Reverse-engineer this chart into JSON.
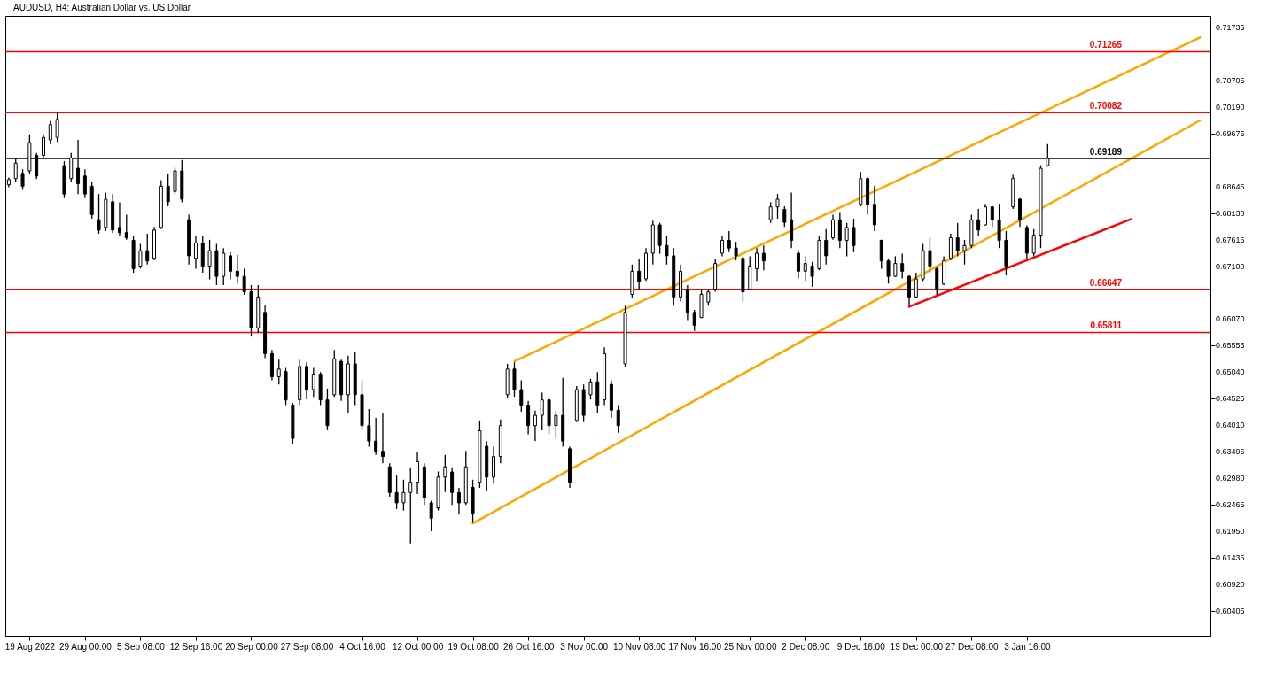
{
  "chart_data": {
    "type": "candlestick",
    "title": "AUDUSD, H4:  Australian Dollar vs. US Dollar",
    "categories": [
      null,
      null,
      null,
      "19 Aug 2022",
      null,
      null,
      null,
      null,
      null,
      null,
      null,
      "29 Aug 00:00",
      null,
      null,
      null,
      null,
      null,
      null,
      null,
      "5 Sep 08:00",
      null,
      null,
      null,
      null,
      null,
      null,
      null,
      "12 Sep 16:00",
      null,
      null,
      null,
      null,
      null,
      null,
      null,
      "20 Sep 00:00",
      null,
      null,
      null,
      null,
      null,
      null,
      null,
      "27 Sep 08:00",
      null,
      null,
      null,
      null,
      null,
      null,
      null,
      "4 Oct 16:00",
      null,
      null,
      null,
      null,
      null,
      null,
      null,
      "12 Oct 00:00",
      null,
      null,
      null,
      null,
      null,
      null,
      null,
      "19 Oct 08:00",
      null,
      null,
      null,
      null,
      null,
      null,
      null,
      "26 Oct 16:00",
      null,
      null,
      null,
      null,
      null,
      null,
      null,
      "3 Nov 00:00",
      null,
      null,
      null,
      null,
      null,
      null,
      null,
      "10 Nov 08:00",
      null,
      null,
      null,
      null,
      null,
      null,
      null,
      "17 Nov 16:00",
      null,
      null,
      null,
      null,
      null,
      null,
      null,
      "25 Nov 00:00",
      null,
      null,
      null,
      null,
      null,
      null,
      null,
      "2 Dec 08:00",
      null,
      null,
      null,
      null,
      null,
      null,
      null,
      "9 Dec 16:00",
      null,
      null,
      null,
      null,
      null,
      null,
      null,
      "19 Dec 00:00",
      null,
      null,
      null,
      null,
      null,
      null,
      null,
      "27 Dec 08:00",
      null,
      null,
      null,
      null,
      null,
      null,
      null,
      "3 Jan 16:00",
      null,
      null,
      null,
      null,
      null,
      null,
      null,
      null,
      null,
      null,
      null,
      null,
      null,
      null,
      null,
      null,
      null,
      null,
      null,
      null,
      null,
      null,
      null,
      null,
      null,
      null
    ],
    "ohlc": [
      [
        0.6868,
        0.6882,
        0.6863,
        0.6878
      ],
      [
        0.688,
        0.6919,
        0.6874,
        0.691
      ],
      [
        0.689,
        0.6898,
        0.6858,
        0.6865
      ],
      [
        0.6895,
        0.6966,
        0.689,
        0.695
      ],
      [
        0.6925,
        0.693,
        0.6879,
        0.6885
      ],
      [
        0.6925,
        0.6966,
        0.6919,
        0.696
      ],
      [
        0.6955,
        0.6992,
        0.6947,
        0.6985
      ],
      [
        0.696,
        0.7008,
        0.6951,
        0.6995
      ],
      [
        0.6905,
        0.6914,
        0.6842,
        0.685
      ],
      [
        0.688,
        0.693,
        0.6874,
        0.692
      ],
      [
        0.69,
        0.6955,
        0.685,
        0.687
      ],
      [
        0.6885,
        0.6898,
        0.6842,
        0.685
      ],
      [
        0.6865,
        0.6874,
        0.6802,
        0.681
      ],
      [
        0.68,
        0.685,
        0.6773,
        0.678
      ],
      [
        0.6785,
        0.6853,
        0.6778,
        0.684
      ],
      [
        0.6835,
        0.685,
        0.6774,
        0.678
      ],
      [
        0.6785,
        0.6834,
        0.6769,
        0.6775
      ],
      [
        0.6775,
        0.681,
        0.6761,
        0.6765
      ],
      [
        0.676,
        0.6769,
        0.6697,
        0.6705
      ],
      [
        0.671,
        0.6753,
        0.6705,
        0.674
      ],
      [
        0.674,
        0.6773,
        0.6713,
        0.672
      ],
      [
        0.6725,
        0.6786,
        0.6721,
        0.678
      ],
      [
        0.6785,
        0.6877,
        0.6782,
        0.6865
      ],
      [
        0.6865,
        0.689,
        0.6826,
        0.6835
      ],
      [
        0.6855,
        0.6901,
        0.685,
        0.6895
      ],
      [
        0.6895,
        0.6916,
        0.6834,
        0.684
      ],
      [
        0.68,
        0.681,
        0.6713,
        0.673
      ],
      [
        0.6725,
        0.6769,
        0.6705,
        0.6755
      ],
      [
        0.6755,
        0.6769,
        0.6697,
        0.671
      ],
      [
        0.671,
        0.6761,
        0.6684,
        0.674
      ],
      [
        0.674,
        0.6753,
        0.6673,
        0.669
      ],
      [
        0.669,
        0.6745,
        0.6673,
        0.6735
      ],
      [
        0.673,
        0.6737,
        0.6684,
        0.67
      ],
      [
        0.67,
        0.6732,
        0.6676,
        0.669
      ],
      [
        0.669,
        0.6705,
        0.6654,
        0.666
      ],
      [
        0.666,
        0.6673,
        0.6573,
        0.659
      ],
      [
        0.659,
        0.6673,
        0.658,
        0.665
      ],
      [
        0.662,
        0.6633,
        0.6531,
        0.654
      ],
      [
        0.654,
        0.6547,
        0.6488,
        0.6495
      ],
      [
        0.6495,
        0.6528,
        0.648,
        0.651
      ],
      [
        0.6505,
        0.6512,
        0.644,
        0.645
      ],
      [
        0.644,
        0.6444,
        0.6364,
        0.6375
      ],
      [
        0.645,
        0.6528,
        0.644,
        0.6515
      ],
      [
        0.6515,
        0.6523,
        0.6451,
        0.647
      ],
      [
        0.647,
        0.6512,
        0.6456,
        0.65
      ],
      [
        0.65,
        0.6504,
        0.644,
        0.645
      ],
      [
        0.645,
        0.6472,
        0.6391,
        0.64
      ],
      [
        0.646,
        0.6547,
        0.6456,
        0.653
      ],
      [
        0.6525,
        0.6528,
        0.6448,
        0.646
      ],
      [
        0.646,
        0.6536,
        0.6424,
        0.652
      ],
      [
        0.652,
        0.6544,
        0.644,
        0.646
      ],
      [
        0.646,
        0.6488,
        0.6391,
        0.64
      ],
      [
        0.64,
        0.6432,
        0.6359,
        0.637
      ],
      [
        0.637,
        0.6415,
        0.6343,
        0.635
      ],
      [
        0.635,
        0.6424,
        0.6327,
        0.634
      ],
      [
        0.632,
        0.6327,
        0.6262,
        0.627
      ],
      [
        0.627,
        0.6303,
        0.6238,
        0.625
      ],
      [
        0.625,
        0.6295,
        0.6235,
        0.627
      ],
      [
        0.627,
        0.6319,
        0.6171,
        0.629
      ],
      [
        0.629,
        0.6348,
        0.6267,
        0.633
      ],
      [
        0.632,
        0.6327,
        0.6246,
        0.626
      ],
      [
        0.625,
        0.6254,
        0.6195,
        0.622
      ],
      [
        0.624,
        0.6311,
        0.6235,
        0.63
      ],
      [
        0.63,
        0.6343,
        0.6271,
        0.632
      ],
      [
        0.631,
        0.6319,
        0.6246,
        0.627
      ],
      [
        0.627,
        0.6279,
        0.6227,
        0.625
      ],
      [
        0.625,
        0.6351,
        0.6246,
        0.632
      ],
      [
        0.628,
        0.6295,
        0.6211,
        0.623
      ],
      [
        0.629,
        0.641,
        0.6279,
        0.639
      ],
      [
        0.636,
        0.637,
        0.6274,
        0.63
      ],
      [
        0.63,
        0.6359,
        0.6287,
        0.634
      ],
      [
        0.634,
        0.6412,
        0.6327,
        0.64
      ],
      [
        0.646,
        0.652,
        0.6453,
        0.651
      ],
      [
        0.651,
        0.6523,
        0.6456,
        0.647
      ],
      [
        0.647,
        0.6488,
        0.6427,
        0.644
      ],
      [
        0.644,
        0.6448,
        0.6383,
        0.64
      ],
      [
        0.64,
        0.6429,
        0.637,
        0.642
      ],
      [
        0.642,
        0.6464,
        0.6391,
        0.645
      ],
      [
        0.645,
        0.6456,
        0.6383,
        0.64
      ],
      [
        0.64,
        0.6429,
        0.6375,
        0.642
      ],
      [
        0.642,
        0.6493,
        0.6359,
        0.637
      ],
      [
        0.6355,
        0.6359,
        0.6279,
        0.629
      ],
      [
        0.641,
        0.6477,
        0.6407,
        0.647
      ],
      [
        0.647,
        0.648,
        0.6407,
        0.642
      ],
      [
        0.646,
        0.6491,
        0.6451,
        0.6485
      ],
      [
        0.6485,
        0.6504,
        0.6424,
        0.644
      ],
      [
        0.645,
        0.6552,
        0.644,
        0.654
      ],
      [
        0.648,
        0.6488,
        0.6415,
        0.643
      ],
      [
        0.643,
        0.644,
        0.6386,
        0.64
      ],
      [
        0.652,
        0.6633,
        0.6515,
        0.662
      ],
      [
        0.6655,
        0.6713,
        0.6649,
        0.67
      ],
      [
        0.67,
        0.6724,
        0.6665,
        0.668
      ],
      [
        0.6685,
        0.6745,
        0.6681,
        0.6735
      ],
      [
        0.6735,
        0.6798,
        0.6713,
        0.679
      ],
      [
        0.679,
        0.6794,
        0.6734,
        0.675
      ],
      [
        0.675,
        0.6769,
        0.6713,
        0.673
      ],
      [
        0.673,
        0.6745,
        0.6633,
        0.665
      ],
      [
        0.665,
        0.6713,
        0.6641,
        0.67
      ],
      [
        0.6665,
        0.6673,
        0.6605,
        0.662
      ],
      [
        0.662,
        0.6625,
        0.6584,
        0.6595
      ],
      [
        0.661,
        0.6665,
        0.6609,
        0.6655
      ],
      [
        0.664,
        0.6665,
        0.6633,
        0.666
      ],
      [
        0.6665,
        0.6724,
        0.666,
        0.6715
      ],
      [
        0.6735,
        0.6769,
        0.6729,
        0.676
      ],
      [
        0.676,
        0.6778,
        0.6737,
        0.6745
      ],
      [
        0.6745,
        0.6757,
        0.6721,
        0.673
      ],
      [
        0.6725,
        0.6729,
        0.6641,
        0.666
      ],
      [
        0.6665,
        0.6729,
        0.6665,
        0.671
      ],
      [
        0.6705,
        0.6745,
        0.6681,
        0.6735
      ],
      [
        0.6735,
        0.675,
        0.6702,
        0.672
      ],
      [
        0.68,
        0.6834,
        0.6794,
        0.6825
      ],
      [
        0.6825,
        0.685,
        0.6802,
        0.684
      ],
      [
        0.682,
        0.6826,
        0.6786,
        0.6795
      ],
      [
        0.68,
        0.6853,
        0.6745,
        0.676
      ],
      [
        0.6735,
        0.6741,
        0.6686,
        0.67
      ],
      [
        0.67,
        0.6729,
        0.6681,
        0.6715
      ],
      [
        0.671,
        0.6718,
        0.667,
        0.669
      ],
      [
        0.6705,
        0.6769,
        0.6702,
        0.676
      ],
      [
        0.676,
        0.6782,
        0.6713,
        0.673
      ],
      [
        0.6765,
        0.681,
        0.6761,
        0.68
      ],
      [
        0.68,
        0.6815,
        0.6745,
        0.676
      ],
      [
        0.676,
        0.6794,
        0.6729,
        0.6785
      ],
      [
        0.6785,
        0.6802,
        0.6737,
        0.675
      ],
      [
        0.683,
        0.6893,
        0.6826,
        0.688
      ],
      [
        0.688,
        0.6882,
        0.681,
        0.683
      ],
      [
        0.683,
        0.6866,
        0.6778,
        0.679
      ],
      [
        0.676,
        0.6761,
        0.6705,
        0.672
      ],
      [
        0.672,
        0.6724,
        0.6676,
        0.669
      ],
      [
        0.669,
        0.6729,
        0.6689,
        0.6715
      ],
      [
        0.6715,
        0.6734,
        0.6686,
        0.67
      ],
      [
        0.669,
        0.6692,
        0.6633,
        0.665
      ],
      [
        0.665,
        0.6697,
        0.6649,
        0.6685
      ],
      [
        0.6685,
        0.6753,
        0.6681,
        0.674
      ],
      [
        0.674,
        0.6766,
        0.6697,
        0.671
      ],
      [
        0.6705,
        0.6708,
        0.6654,
        0.6665
      ],
      [
        0.6675,
        0.6729,
        0.6673,
        0.672
      ],
      [
        0.6725,
        0.6773,
        0.6721,
        0.6765
      ],
      [
        0.6765,
        0.6794,
        0.6729,
        0.674
      ],
      [
        0.674,
        0.6761,
        0.6713,
        0.675
      ],
      [
        0.675,
        0.681,
        0.6745,
        0.68
      ],
      [
        0.68,
        0.6821,
        0.6769,
        0.678
      ],
      [
        0.679,
        0.6831,
        0.6789,
        0.6825
      ],
      [
        0.6825,
        0.6826,
        0.6786,
        0.68
      ],
      [
        0.68,
        0.6831,
        0.6745,
        0.676
      ],
      [
        0.676,
        0.6778,
        0.6692,
        0.671
      ],
      [
        0.6825,
        0.6887,
        0.6821,
        0.688
      ],
      [
        0.684,
        0.6842,
        0.6786,
        0.68
      ],
      [
        0.6785,
        0.6789,
        0.6724,
        0.6735
      ],
      [
        0.6735,
        0.6782,
        0.6729,
        0.677
      ],
      [
        0.677,
        0.6906,
        0.6745,
        0.69
      ],
      [
        0.6905,
        0.6947,
        0.6903,
        0.6919
      ],
      null,
      null,
      null,
      null,
      null,
      null,
      null,
      null,
      null,
      null,
      null,
      null,
      null,
      null,
      null,
      null,
      null,
      null,
      null,
      null,
      null,
      null,
      null
    ],
    "series": [
      {
        "type": "line",
        "color": "#ffa500",
        "values": [
          null,
          null,
          null,
          null,
          null,
          null,
          null,
          null,
          null,
          null,
          null,
          null,
          null,
          null,
          null,
          null,
          null,
          null,
          null,
          null,
          null,
          null,
          null,
          null,
          null,
          null,
          null,
          null,
          null,
          null,
          null,
          null,
          null,
          null,
          null,
          null,
          null,
          null,
          null,
          null,
          null,
          null,
          null,
          null,
          null,
          null,
          null,
          null,
          null,
          null,
          null,
          null,
          null,
          null,
          null,
          null,
          null,
          null,
          null,
          null,
          null,
          null,
          null,
          null,
          null,
          null,
          null,
          null,
          null,
          null,
          null,
          null,
          null,
          0.6525,
          null,
          null,
          null,
          null,
          null,
          null,
          null,
          null,
          null,
          null,
          null,
          null,
          null,
          null,
          null,
          null,
          null,
          null,
          null,
          null,
          null,
          null,
          null,
          null,
          null,
          null,
          null,
          null,
          null,
          null,
          null,
          null,
          null,
          null,
          null,
          null,
          null,
          null,
          null,
          null,
          null,
          null,
          null,
          null,
          null,
          null,
          null,
          null,
          null,
          null,
          null,
          null,
          null,
          null,
          null,
          null,
          null,
          null,
          null,
          null,
          null,
          null,
          null,
          null,
          null,
          null,
          null,
          null,
          null,
          null,
          null,
          null,
          null,
          null,
          null,
          null,
          null,
          null,
          null,
          null,
          null,
          null,
          null,
          null,
          null,
          null,
          null,
          null,
          null,
          null,
          null,
          null,
          null,
          null,
          null,
          null,
          null,
          null,
          0.7154,
          null
        ]
      },
      {
        "type": "line",
        "color": "#ffa500",
        "values": [
          null,
          null,
          null,
          null,
          null,
          null,
          null,
          null,
          null,
          null,
          null,
          null,
          null,
          null,
          null,
          null,
          null,
          null,
          null,
          null,
          null,
          null,
          null,
          null,
          null,
          null,
          null,
          null,
          null,
          null,
          null,
          null,
          null,
          null,
          null,
          null,
          null,
          null,
          null,
          null,
          null,
          null,
          null,
          null,
          null,
          null,
          null,
          null,
          null,
          null,
          null,
          null,
          null,
          null,
          null,
          null,
          null,
          null,
          null,
          null,
          null,
          null,
          null,
          null,
          null,
          null,
          null,
          0.621,
          null,
          null,
          null,
          null,
          null,
          null,
          null,
          null,
          null,
          null,
          null,
          null,
          null,
          null,
          null,
          null,
          null,
          null,
          null,
          null,
          null,
          null,
          null,
          null,
          null,
          null,
          null,
          null,
          null,
          null,
          null,
          null,
          null,
          null,
          null,
          null,
          null,
          null,
          null,
          null,
          null,
          null,
          null,
          null,
          null,
          null,
          null,
          null,
          null,
          null,
          null,
          null,
          null,
          null,
          null,
          null,
          null,
          null,
          null,
          null,
          null,
          null,
          null,
          null,
          null,
          null,
          null,
          null,
          null,
          null,
          null,
          null,
          null,
          null,
          null,
          null,
          null,
          null,
          null,
          null,
          null,
          null,
          null,
          null,
          null,
          null,
          null,
          null,
          null,
          null,
          null,
          null,
          null,
          null,
          null,
          null,
          null,
          null,
          null,
          null,
          null,
          null,
          null,
          null,
          0.6993,
          null
        ]
      },
      {
        "type": "line",
        "color": "#ff0000",
        "values": [
          null,
          null,
          null,
          null,
          null,
          null,
          null,
          null,
          null,
          null,
          null,
          null,
          null,
          null,
          null,
          null,
          null,
          null,
          null,
          null,
          null,
          null,
          null,
          null,
          null,
          null,
          null,
          null,
          null,
          null,
          null,
          null,
          null,
          null,
          null,
          null,
          null,
          null,
          null,
          null,
          null,
          null,
          null,
          null,
          null,
          null,
          null,
          null,
          null,
          null,
          null,
          null,
          null,
          null,
          null,
          null,
          null,
          null,
          null,
          null,
          null,
          null,
          null,
          null,
          null,
          null,
          null,
          null,
          null,
          null,
          null,
          null,
          null,
          null,
          null,
          null,
          null,
          null,
          null,
          null,
          null,
          null,
          null,
          null,
          null,
          null,
          null,
          null,
          null,
          null,
          null,
          null,
          null,
          null,
          null,
          null,
          null,
          null,
          null,
          null,
          null,
          null,
          null,
          null,
          null,
          null,
          null,
          null,
          null,
          null,
          null,
          null,
          null,
          null,
          null,
          null,
          null,
          null,
          null,
          null,
          null,
          null,
          null,
          null,
          null,
          null,
          null,
          null,
          null,
          null,
          0.6631,
          null,
          null,
          null,
          null,
          null,
          null,
          null,
          null,
          null,
          null,
          null,
          null,
          null,
          null,
          null,
          null,
          null,
          null,
          null,
          null,
          null,
          null,
          null,
          null,
          null,
          null,
          null,
          null,
          null,
          null,
          null,
          0.6801,
          null,
          null,
          null,
          null,
          null,
          null,
          null,
          null,
          null,
          null,
          null
        ]
      }
    ],
    "ref_lines": [
      {
        "axis": "y",
        "value": 0.71265,
        "label": "0.71265",
        "color": "#ff0000"
      },
      {
        "axis": "y",
        "value": 0.70082,
        "label": "0.70082",
        "color": "#ff0000"
      },
      {
        "axis": "y",
        "value": 0.69189,
        "label": "0.69189",
        "color": "#000000"
      },
      {
        "axis": "y",
        "value": 0.66647,
        "label": "0.66647",
        "color": "#ff0000"
      },
      {
        "axis": "y",
        "value": 0.65811,
        "label": "0.65811",
        "color": "#ff0000"
      }
    ],
    "ylim": [
      0.59918,
      0.7196
    ],
    "yticks": [
      0.71735,
      0.70705,
      {
        "value": 0.7019,
        "label": "0.70190"
      },
      0.69675,
      0.68645,
      {
        "value": 0.6813,
        "label": "0.68130"
      },
      0.67615,
      {
        "value": 0.671,
        "label": "0.67100"
      },
      {
        "value": 0.6607,
        "label": "0.66070"
      },
      0.65555,
      {
        "value": 0.6504,
        "label": "0.65040"
      },
      0.64525,
      {
        "value": 0.6401,
        "label": "0.64010"
      },
      0.63495,
      {
        "value": 0.6298,
        "label": "0.62980"
      },
      0.62465,
      {
        "value": 0.6195,
        "label": "0.61950"
      },
      0.61435,
      {
        "value": 0.6092,
        "label": "0.60920"
      },
      0.60405
    ],
    "grid": false,
    "legend": false
  }
}
